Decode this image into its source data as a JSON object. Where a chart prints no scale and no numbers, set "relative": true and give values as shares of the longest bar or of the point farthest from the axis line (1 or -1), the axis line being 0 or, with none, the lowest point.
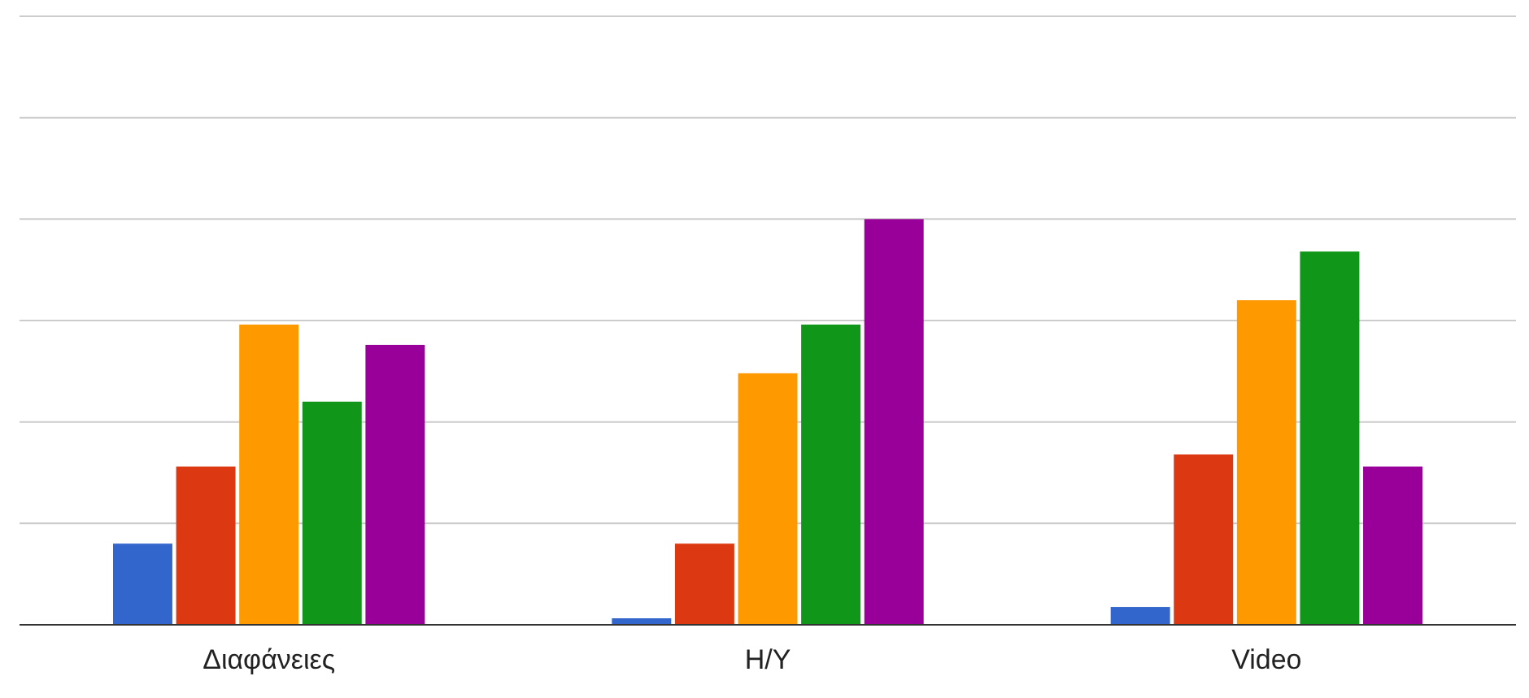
{
  "chart_data": {
    "type": "bar",
    "relative": true,
    "grid": true,
    "categories": [
      "Διαφάνειες",
      "H/Y",
      "Video"
    ],
    "series": [
      {
        "color": "#3366cc",
        "values": [
          0.2,
          0.016,
          0.044
        ]
      },
      {
        "color": "#dc3912",
        "values": [
          0.39,
          0.2,
          0.42
        ]
      },
      {
        "color": "#ff9900",
        "values": [
          0.74,
          0.62,
          0.8
        ]
      },
      {
        "color": "#109618",
        "values": [
          0.55,
          0.74,
          0.92
        ]
      },
      {
        "color": "#990099",
        "values": [
          0.69,
          1,
          0.39
        ]
      }
    ]
  }
}
